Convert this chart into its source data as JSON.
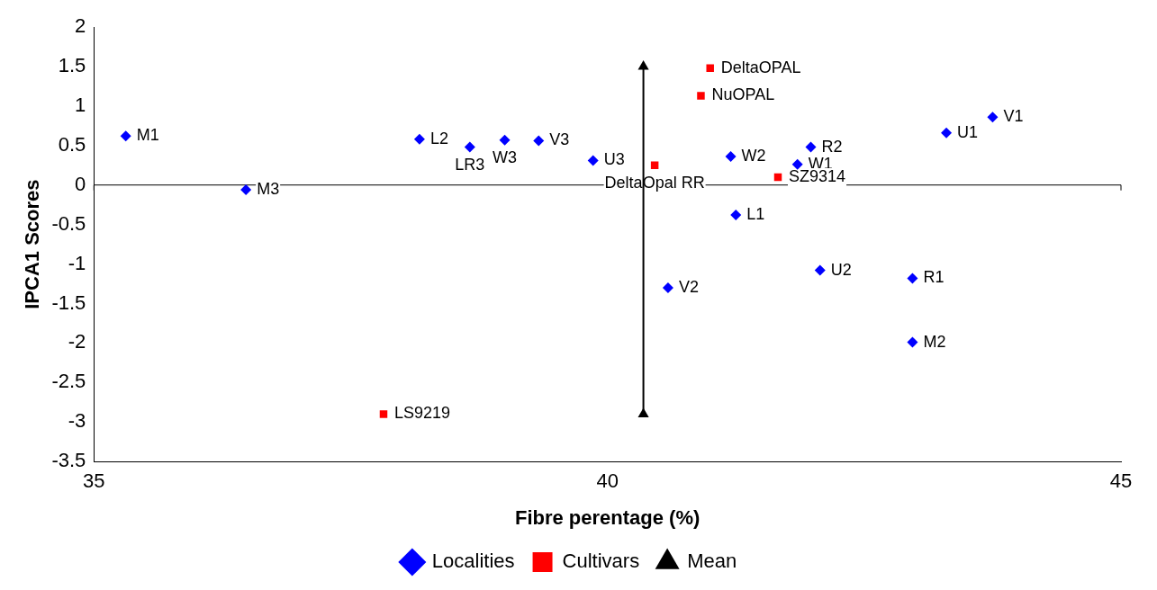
{
  "chart_data": {
    "type": "scatter",
    "xlabel": "Fibre perentage (%)",
    "ylabel": "IPCA1 Scores",
    "xlim": [
      35,
      45
    ],
    "xticks": [
      35,
      40,
      45
    ],
    "ylim": [
      -3.5,
      2
    ],
    "yticks": [
      -3.5,
      -3,
      -2.5,
      -2,
      -1.5,
      -1,
      -0.5,
      0,
      0.5,
      1,
      1.5,
      2
    ],
    "grid": false,
    "legend": "bottom",
    "ref_lines": [
      {
        "axis": "y",
        "value": 0,
        "color": "#000000"
      }
    ],
    "series": [
      {
        "name": "Localities",
        "color": "#0000ff",
        "marker": "diamond",
        "x": [
          35.31,
          36.48,
          38.17,
          38.66,
          39.0,
          39.33,
          39.86,
          40.59,
          41.2,
          41.25,
          41.98,
          41.85,
          42.07,
          42.97,
          42.97,
          43.3,
          43.75
        ],
        "values": [
          0.62,
          -0.06,
          0.58,
          0.48,
          0.57,
          0.56,
          0.31,
          -1.3,
          0.36,
          -0.38,
          0.48,
          0.26,
          -1.08,
          -1.18,
          -1.99,
          0.66,
          0.86
        ]
      },
      {
        "name": "Cultivars",
        "color": "#ff0000",
        "marker": "square",
        "x": [
          41.0,
          40.91,
          40.46,
          41.66,
          37.82
        ],
        "values": [
          1.48,
          1.13,
          0.25,
          0.1,
          -2.9
        ]
      },
      {
        "name": "Mean",
        "type": "line",
        "color": "#000000",
        "marker": "triangle",
        "x": [
          40.35,
          40.35
        ],
        "values": [
          1.5,
          -2.9
        ]
      }
    ],
    "annotations": [
      {
        "text": "M1",
        "x": 35.31,
        "y": 0.62
      },
      {
        "text": "M3",
        "x": 36.48,
        "y": -0.06
      },
      {
        "text": "L2",
        "x": 38.17,
        "y": 0.58
      },
      {
        "text": "LR3",
        "x": 38.66,
        "y": 0.48
      },
      {
        "text": "W3",
        "x": 39.0,
        "y": 0.57
      },
      {
        "text": "V3",
        "x": 39.33,
        "y": 0.56
      },
      {
        "text": "U3",
        "x": 39.86,
        "y": 0.31
      },
      {
        "text": "V2",
        "x": 40.59,
        "y": -1.3
      },
      {
        "text": "W2",
        "x": 41.2,
        "y": 0.36
      },
      {
        "text": "L1",
        "x": 41.25,
        "y": -0.38
      },
      {
        "text": "R2",
        "x": 41.98,
        "y": 0.48
      },
      {
        "text": "W1",
        "x": 41.85,
        "y": 0.26
      },
      {
        "text": "U2",
        "x": 42.07,
        "y": -1.08
      },
      {
        "text": "R1",
        "x": 42.97,
        "y": -1.18
      },
      {
        "text": "M2",
        "x": 42.97,
        "y": -1.99
      },
      {
        "text": "U1",
        "x": 43.3,
        "y": 0.66
      },
      {
        "text": "V1",
        "x": 43.75,
        "y": 0.86
      },
      {
        "text": "DeltaOPAL",
        "x": 41.0,
        "y": 1.48
      },
      {
        "text": "NuOPAL",
        "x": 40.91,
        "y": 1.13
      },
      {
        "text": "DeltaOpal RR",
        "x": 40.46,
        "y": 0.25
      },
      {
        "text": "SZ9314",
        "x": 41.66,
        "y": 0.1
      },
      {
        "text": "LS9219",
        "x": 37.82,
        "y": -2.9
      }
    ]
  }
}
